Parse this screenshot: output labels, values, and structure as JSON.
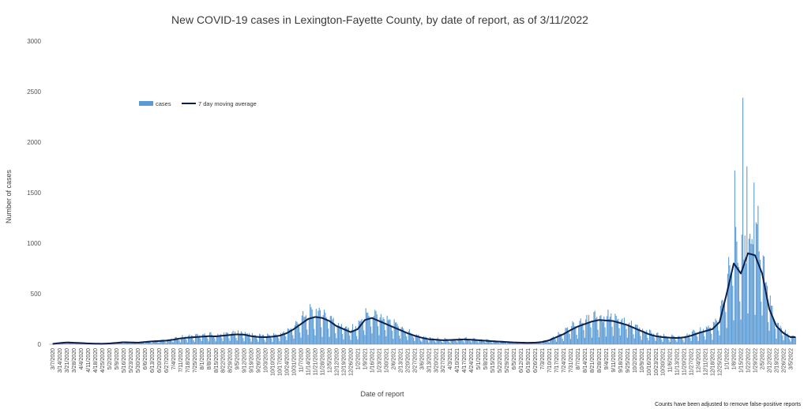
{
  "chart_data": {
    "type": "bar",
    "title": "New COVID-19 cases in Lexington-Fayette County, by date of report, as of 3/11/2022",
    "xlabel": "Date of report",
    "ylabel": "Number of cases",
    "ylim": [
      0,
      3000
    ],
    "yticks": [
      0,
      500,
      1000,
      1500,
      2000,
      2500,
      3000
    ],
    "footnote": "Counts have been adjusted to remove false-positive reports",
    "legend": {
      "position": "top-left",
      "entries": [
        "cases",
        "7 day moving average"
      ]
    },
    "colors": {
      "bars": "#5B9BD5",
      "line": "#0B1F4D"
    },
    "x_start": "3/7/2020",
    "x_end": "3/10/2022",
    "tick_labels": [
      "3/7/2020",
      "3/14/2020",
      "3/21/2020",
      "3/28/2020",
      "4/4/2020",
      "4/11/2020",
      "4/18/2020",
      "4/25/2020",
      "5/2/2020",
      "5/9/2020",
      "5/16/2020",
      "5/23/2020",
      "5/30/2020",
      "6/6/2020",
      "6/13/2020",
      "6/20/2020",
      "6/27/2020",
      "7/4/2020",
      "7/11/2020",
      "7/18/2020",
      "7/25/2020",
      "8/1/2020",
      "8/8/2020",
      "8/15/2020",
      "8/22/2020",
      "8/29/2020",
      "9/5/2020",
      "9/12/2020",
      "9/19/2020",
      "9/26/2020",
      "10/3/2020",
      "10/10/2020",
      "10/17/2020",
      "10/24/2020",
      "10/31/2020",
      "11/7/2020",
      "11/14/2020",
      "11/21/2020",
      "11/28/2020",
      "12/5/2020",
      "12/12/2020",
      "12/19/2020",
      "12/26/2020",
      "1/2/2021",
      "1/9/2021",
      "1/16/2021",
      "1/23/2021",
      "1/30/2021",
      "2/6/2021",
      "2/13/2021",
      "2/20/2021",
      "2/27/2021",
      "3/6/2021",
      "3/13/2021",
      "3/20/2021",
      "3/27/2021",
      "4/3/2021",
      "4/10/2021",
      "4/17/2021",
      "4/24/2021",
      "5/1/2021",
      "5/8/2021",
      "5/15/2021",
      "5/22/2021",
      "5/29/2021",
      "6/5/2021",
      "6/12/2021",
      "6/19/2021",
      "6/26/2021",
      "7/3/2021",
      "7/10/2021",
      "7/17/2021",
      "7/24/2021",
      "7/31/2021",
      "8/7/2021",
      "8/14/2021",
      "8/21/2021",
      "8/28/2021",
      "9/4/2021",
      "9/11/2021",
      "9/18/2021",
      "9/25/2021",
      "10/2/2021",
      "10/9/2021",
      "10/16/2021",
      "10/23/2021",
      "10/30/2021",
      "11/6/2021",
      "11/13/2021",
      "11/20/2021",
      "11/27/2021",
      "12/4/2021",
      "12/11/2021",
      "12/18/2021",
      "12/25/2021",
      "1/1/2022",
      "1/8/2022",
      "1/15/2022",
      "1/22/2022",
      "1/29/2022",
      "2/5/2022",
      "2/12/2022",
      "2/19/2022",
      "2/26/2022",
      "3/5/2022"
    ],
    "weekly_average_cases": [
      4,
      12,
      18,
      15,
      12,
      8,
      6,
      5,
      8,
      14,
      20,
      18,
      16,
      22,
      28,
      32,
      36,
      45,
      58,
      65,
      70,
      75,
      80,
      78,
      85,
      92,
      98,
      95,
      80,
      72,
      70,
      75,
      85,
      110,
      150,
      200,
      250,
      270,
      260,
      230,
      180,
      150,
      120,
      150,
      240,
      260,
      230,
      200,
      170,
      140,
      110,
      85,
      65,
      50,
      45,
      40,
      42,
      45,
      48,
      45,
      40,
      35,
      30,
      26,
      22,
      18,
      16,
      14,
      16,
      22,
      40,
      70,
      100,
      140,
      175,
      200,
      225,
      240,
      235,
      230,
      210,
      190,
      160,
      130,
      100,
      80,
      70,
      65,
      62,
      68,
      85,
      110,
      130,
      150,
      220,
      500,
      800,
      700,
      900,
      880,
      700,
      350,
      180,
      110,
      70
    ],
    "notable_daily_peaks": [
      {
        "date": "1/9/2022",
        "value": 1720
      },
      {
        "date": "1/17/2022",
        "value": 2440
      },
      {
        "date": "1/21/2022",
        "value": 1760
      },
      {
        "date": "1/28/2022",
        "value": 1600
      },
      {
        "date": "2/1/2022",
        "value": 1370
      }
    ]
  }
}
